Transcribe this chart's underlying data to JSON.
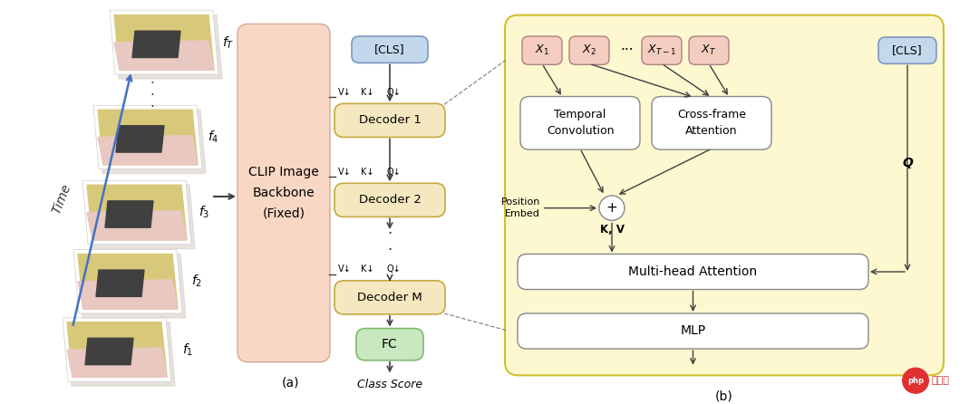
{
  "bg_color": "#ffffff",
  "fig_width": 10.8,
  "fig_height": 4.46,
  "clip_color": "#f8d8c4",
  "clip_edge": "#d4a898",
  "decoder_color": "#f5e8c0",
  "decoder_edge": "#c8a840",
  "fc_color": "#c8e8c0",
  "fc_edge": "#80b870",
  "cls_color": "#c4d8ec",
  "cls_edge": "#8098c0",
  "right_panel_bg": "#fdf8d0",
  "right_panel_edge": "#d0c030",
  "xbox_color": "#f4ccc0",
  "xbox_edge": "#b08080",
  "tc_cf_color": "#ffffff",
  "tc_cf_edge": "#888888",
  "mha_mlp_color": "#ffffff",
  "mha_mlp_edge": "#888888",
  "arrow_color": "#404040",
  "blue_arrow": "#4472c4",
  "time_label": "Time",
  "clip_label": "CLIP Image\nBackbone\n(Fixed)",
  "cls_label": "[CLS]",
  "decoder_labels": [
    "Decoder 1",
    "Decoder 2",
    "Decoder M"
  ],
  "fc_label": "FC",
  "class_score_label": "Class Score",
  "label_a": "(a)",
  "label_b": "(b)",
  "frame_labels": [
    "f_T",
    "f_4",
    "f_3",
    "f_2",
    "f_1"
  ],
  "x_labels": [
    "X_1",
    "X_2",
    "X_{T-1}",
    "X_T"
  ],
  "tc_label": "Temporal\nConvolution",
  "cf_label": "Cross-frame\nAttention",
  "mha_label": "Multi-head Attention",
  "mlp_label": "MLP",
  "pos_embed_label": "Position\nEmbed",
  "kv_label": "K, V",
  "q_label": "Q"
}
